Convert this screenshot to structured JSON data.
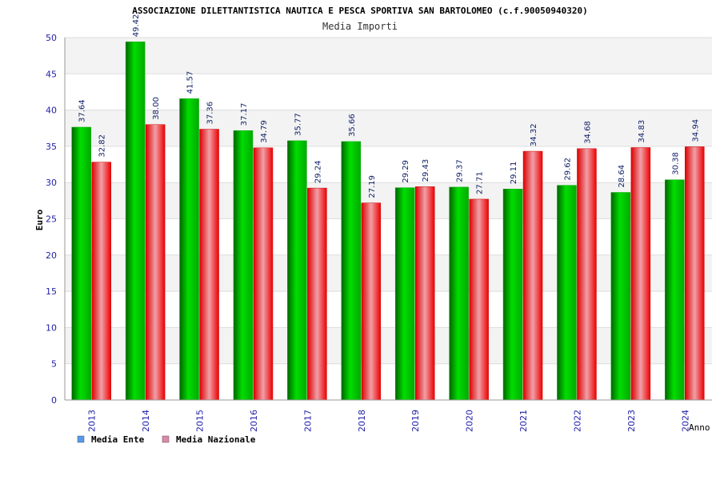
{
  "chart_data": {
    "type": "bar",
    "title": "ASSOCIAZIONE DILETTANTISTICA NAUTICA E PESCA SPORTIVA SAN BARTOLOMEO (c.f.90050940320)",
    "subtitle": "Media Importi",
    "ylabel": "Euro",
    "xlabel": "Anno",
    "ylim": [
      0,
      50
    ],
    "yticks": [
      0,
      5,
      10,
      15,
      20,
      25,
      30,
      35,
      40,
      45,
      50
    ],
    "categories": [
      "2013",
      "2014",
      "2015",
      "2016",
      "2017",
      "2018",
      "2019",
      "2020",
      "2021",
      "2022",
      "2023",
      "2024"
    ],
    "series": [
      {
        "name": "Media Ente",
        "color": "#00cc00",
        "legend_color": "#5599ee",
        "values": [
          37.64,
          49.42,
          41.57,
          37.17,
          35.77,
          35.66,
          29.29,
          29.37,
          29.11,
          29.62,
          28.64,
          30.38
        ],
        "labels": [
          "37.64",
          "49.42",
          "41.57",
          "37.17",
          "35.77",
          "35.66",
          "29.29",
          "29.37",
          "29.11",
          "29.62",
          "28.64",
          "30.38"
        ]
      },
      {
        "name": "Media Nazionale",
        "color": "#ee0000",
        "legend_color": "#dd88aa",
        "values": [
          32.82,
          38.0,
          37.36,
          34.79,
          29.24,
          27.19,
          29.43,
          27.71,
          34.32,
          34.68,
          34.83,
          34.94
        ],
        "labels": [
          "32.82",
          "38.00",
          "37.36",
          "34.79",
          "29.24",
          "27.19",
          "29.43",
          "27.71",
          "34.32",
          "34.68",
          "34.83",
          "34.94"
        ]
      }
    ],
    "grid": true,
    "legend_position": "bottom-left"
  }
}
